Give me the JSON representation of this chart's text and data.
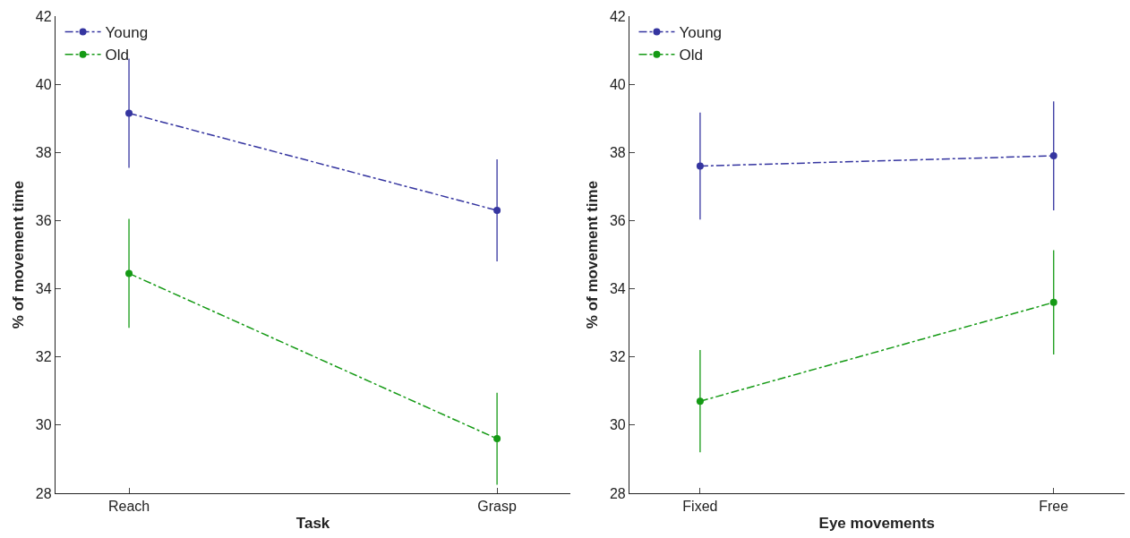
{
  "chart_data": [
    {
      "type": "line",
      "xlabel": "Task",
      "ylabel": "% of movement time",
      "categories": [
        "Reach",
        "Grasp"
      ],
      "series": [
        {
          "name": "Young",
          "color": "#3535a0",
          "values": [
            39.15,
            36.3
          ],
          "errors": [
            1.6,
            1.5
          ]
        },
        {
          "name": "Old",
          "color": "#159a15",
          "values": [
            34.45,
            29.6
          ],
          "errors": [
            1.6,
            1.35
          ]
        }
      ],
      "ylim": [
        28,
        42
      ],
      "yticks": [
        28,
        30,
        32,
        34,
        36,
        38,
        40,
        42
      ],
      "grid": false,
      "legend": "top left",
      "marker": "circle",
      "line_style": "dashed"
    },
    {
      "type": "line",
      "xlabel": "Eye movements",
      "ylabel": "% of movement time",
      "categories": [
        "Fixed",
        "Free"
      ],
      "series": [
        {
          "name": "Young",
          "color": "#3535a0",
          "values": [
            37.6,
            37.9
          ],
          "errors": [
            1.57,
            1.6
          ]
        },
        {
          "name": "Old",
          "color": "#159a15",
          "values": [
            30.7,
            33.6
          ],
          "errors": [
            1.5,
            1.53
          ]
        }
      ],
      "ylim": [
        28,
        42
      ],
      "yticks": [
        28,
        30,
        32,
        34,
        36,
        38,
        40,
        42
      ],
      "grid": false,
      "legend": "top left",
      "marker": "circle",
      "line_style": "dashed"
    }
  ]
}
